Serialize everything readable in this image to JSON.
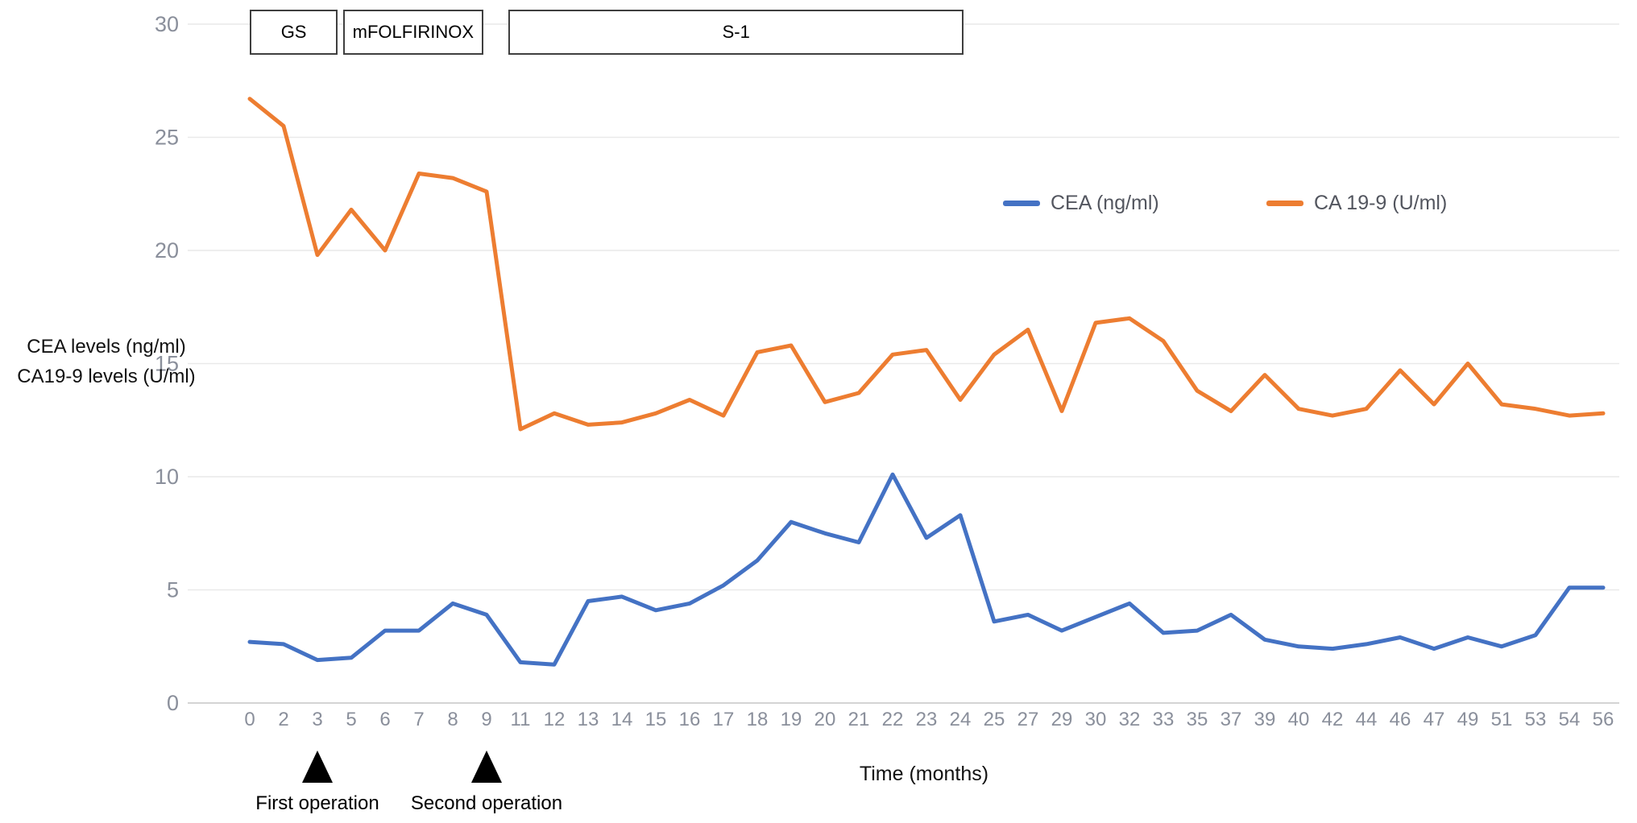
{
  "chart_data": {
    "type": "line",
    "categories": [
      0,
      2,
      3,
      5,
      6,
      7,
      8,
      9,
      11,
      12,
      13,
      14,
      15,
      16,
      17,
      18,
      19,
      20,
      21,
      22,
      23,
      24,
      25,
      27,
      29,
      30,
      32,
      33,
      35,
      37,
      39,
      40,
      42,
      44,
      46,
      47,
      49,
      51,
      53,
      54,
      56
    ],
    "series": [
      {
        "name": "CEA (ng/ml)",
        "color": "#4472C4",
        "values": [
          2.7,
          2.6,
          1.9,
          2.0,
          3.2,
          3.2,
          4.4,
          3.9,
          1.8,
          1.7,
          4.5,
          4.7,
          4.1,
          4.4,
          5.2,
          6.3,
          8.0,
          7.5,
          7.1,
          10.1,
          7.3,
          8.3,
          3.6,
          3.9,
          3.2,
          3.8,
          4.4,
          3.1,
          3.2,
          3.9,
          2.8,
          2.5,
          2.4,
          2.6,
          2.9,
          2.4,
          2.9,
          2.5,
          3.0,
          5.1,
          5.1
        ]
      },
      {
        "name": "CA 19-9 (U/ml)",
        "color": "#ED7D31",
        "values": [
          26.7,
          25.5,
          19.8,
          21.8,
          20.0,
          23.4,
          23.2,
          22.6,
          12.1,
          12.8,
          12.3,
          12.4,
          12.8,
          13.4,
          12.7,
          15.5,
          15.8,
          13.3,
          13.7,
          15.4,
          15.6,
          13.4,
          15.4,
          16.5,
          12.9,
          16.8,
          17.0,
          16.0,
          13.8,
          12.9,
          14.5,
          13.0,
          12.7,
          13.0,
          14.7,
          13.2,
          15.0,
          13.2,
          13.0,
          12.7,
          12.8
        ]
      }
    ],
    "xlabel": "Time (months)",
    "ylabel_lines": [
      "CEA levels (ng/ml)",
      "CA19-9 levels  (U/ml)"
    ],
    "ylim": [
      0,
      30
    ],
    "yticks": [
      0,
      5,
      10,
      15,
      20,
      25,
      30
    ],
    "grid": "horizontal",
    "legend_position": "inside-top-right"
  },
  "treatments": [
    {
      "label": "GS",
      "start_idx": 0.0,
      "end_idx": 2.6
    },
    {
      "label": "mFOLFIRINOX",
      "start_idx": 2.76,
      "end_idx": 6.9
    },
    {
      "label": "S-1",
      "start_idx": 7.65,
      "end_idx": 21.1
    }
  ],
  "annotations": [
    {
      "label": "First operation",
      "category_index": 2,
      "month": 3
    },
    {
      "label": "Second operation",
      "category_index": 7,
      "month": 9
    }
  ],
  "colors": {
    "cea_line": "#4472C4",
    "ca199_line": "#ED7D31",
    "gridline": "#e9e9e9",
    "axis_line": "#d4d4d4",
    "tick_text": "#8a8f9b",
    "text": "#111111",
    "box_border": "#3f3f3f"
  }
}
